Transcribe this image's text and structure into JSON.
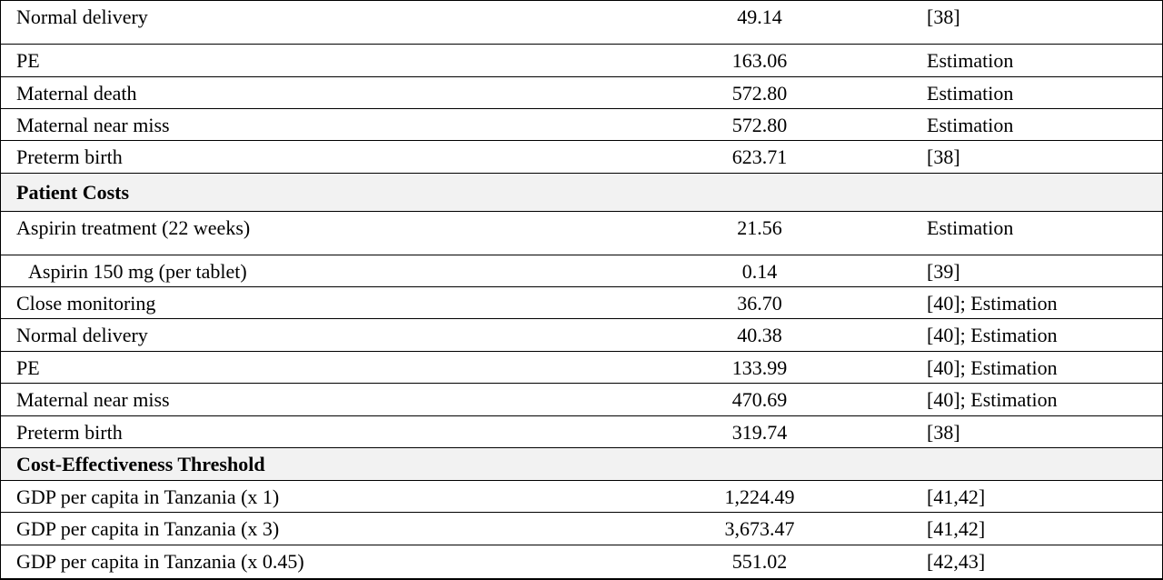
{
  "table": {
    "rows": [
      [
        "Normal delivery",
        "49.14",
        "[38]"
      ],
      [
        "PE",
        "163.06",
        "Estimation"
      ],
      [
        "Maternal death",
        "572.80",
        "Estimation"
      ],
      [
        "Maternal near miss",
        "572.80",
        "Estimation"
      ],
      [
        "Preterm birth",
        "623.71",
        "[38]"
      ],
      [
        "Patient Costs"
      ],
      [
        "Aspirin treatment (22 weeks)",
        "21.56",
        "Estimation"
      ],
      [
        "Aspirin 150 mg (per tablet)",
        "0.14",
        "[39]"
      ],
      [
        "Close monitoring",
        "36.70",
        "[40]; Estimation"
      ],
      [
        "Normal delivery",
        "40.38",
        "[40]; Estimation"
      ],
      [
        "PE",
        "133.99",
        "[40]; Estimation"
      ],
      [
        "Maternal near miss",
        "470.69",
        "[40]; Estimation"
      ],
      [
        "Preterm birth",
        "319.74",
        "[38]"
      ],
      [
        "Cost-Effectiveness Threshold"
      ],
      [
        "GDP per capita in Tanzania (x 1)",
        "1,224.49",
        "[41,42]"
      ],
      [
        "GDP per capita in Tanzania (x 3)",
        "3,673.47",
        "[41,42]"
      ],
      [
        "GDP per capita in Tanzania (x 0.45)",
        "551.02",
        "[42,43]"
      ]
    ]
  }
}
